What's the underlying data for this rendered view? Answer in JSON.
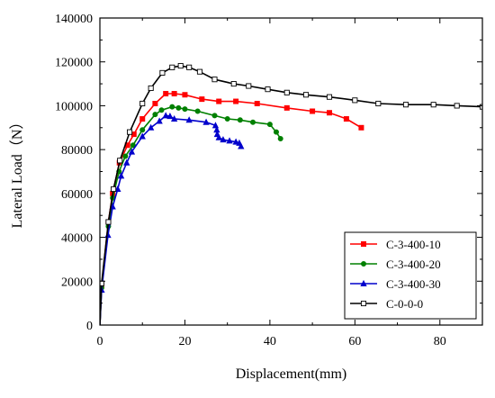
{
  "chart_data": {
    "type": "line",
    "xlabel": "Displacement(mm)",
    "ylabel": "Lateral Load（N）",
    "xlim": [
      0,
      90
    ],
    "ylim": [
      0,
      140000
    ],
    "xticks": [
      0,
      20,
      40,
      60,
      80
    ],
    "yticks": [
      0,
      20000,
      40000,
      60000,
      80000,
      100000,
      120000,
      140000
    ],
    "grid": false,
    "legend_position": "bottom-right",
    "series": [
      {
        "name": "C-3-400-10",
        "color": "#ff0000",
        "marker": "square-filled",
        "points": [
          [
            0,
            0
          ],
          [
            0.4,
            18000
          ],
          [
            2,
            47000
          ],
          [
            3,
            60000
          ],
          [
            4.6,
            74000
          ],
          [
            6.5,
            82000
          ],
          [
            8,
            87000
          ],
          [
            10,
            94000
          ],
          [
            13,
            101000
          ],
          [
            15.5,
            105500
          ],
          [
            17.5,
            105500
          ],
          [
            20,
            105000
          ],
          [
            24,
            103000
          ],
          [
            28,
            102000
          ],
          [
            32,
            102000
          ],
          [
            37,
            101000
          ],
          [
            44,
            99000
          ],
          [
            50,
            97500
          ],
          [
            54,
            96800
          ],
          [
            58,
            94000
          ],
          [
            61.5,
            90000
          ]
        ]
      },
      {
        "name": "C-3-400-20",
        "color": "#008000",
        "marker": "circle-filled",
        "points": [
          [
            0,
            0
          ],
          [
            0.4,
            17000
          ],
          [
            2,
            45000
          ],
          [
            3,
            58000
          ],
          [
            4.5,
            70000
          ],
          [
            6,
            77000
          ],
          [
            7.8,
            82000
          ],
          [
            10,
            89000
          ],
          [
            13,
            96000
          ],
          [
            14.5,
            98000
          ],
          [
            17,
            99500
          ],
          [
            18.5,
            99000
          ],
          [
            20,
            98500
          ],
          [
            23,
            97500
          ],
          [
            27,
            95500
          ],
          [
            30,
            94000
          ],
          [
            33,
            93500
          ],
          [
            36,
            92500
          ],
          [
            40,
            91500
          ],
          [
            41.5,
            88000
          ],
          [
            42.5,
            85000
          ]
        ]
      },
      {
        "name": "C-3-400-30",
        "color": "#0000cc",
        "marker": "triangle-filled",
        "points": [
          [
            0,
            0
          ],
          [
            0.4,
            16000
          ],
          [
            1.9,
            41000
          ],
          [
            3,
            54000
          ],
          [
            4.2,
            62000
          ],
          [
            5,
            68000
          ],
          [
            6.3,
            74000
          ],
          [
            7.5,
            79000
          ],
          [
            10,
            86000
          ],
          [
            12,
            90000
          ],
          [
            14,
            93000
          ],
          [
            15.5,
            95500
          ],
          [
            16.5,
            95200
          ],
          [
            17.5,
            94000
          ],
          [
            21,
            93500
          ],
          [
            25,
            92500
          ],
          [
            27.2,
            91000
          ],
          [
            27.5,
            89000
          ],
          [
            27.6,
            87000
          ],
          [
            28,
            85500
          ],
          [
            29,
            84500
          ],
          [
            30.5,
            84000
          ],
          [
            32,
            83500
          ],
          [
            32.8,
            83000
          ],
          [
            33.2,
            81500
          ]
        ]
      },
      {
        "name": "C-0-0-0",
        "color": "#000000",
        "marker": "square-open",
        "points": [
          [
            0,
            0
          ],
          [
            0.4,
            19000
          ],
          [
            2,
            47000
          ],
          [
            3.2,
            62000
          ],
          [
            4.7,
            75000
          ],
          [
            7,
            88000
          ],
          [
            10,
            101000
          ],
          [
            12,
            108000
          ],
          [
            14.7,
            115000
          ],
          [
            17,
            117500
          ],
          [
            19,
            118200
          ],
          [
            21,
            117500
          ],
          [
            23.5,
            115500
          ],
          [
            27,
            112000
          ],
          [
            31.5,
            110000
          ],
          [
            35,
            109000
          ],
          [
            39.5,
            107500
          ],
          [
            44,
            106000
          ],
          [
            48.5,
            105000
          ],
          [
            54,
            104000
          ],
          [
            60,
            102500
          ],
          [
            65.5,
            101000
          ],
          [
            72,
            100500
          ],
          [
            78.5,
            100500
          ],
          [
            84,
            100000
          ],
          [
            90,
            99500
          ]
        ]
      }
    ]
  }
}
